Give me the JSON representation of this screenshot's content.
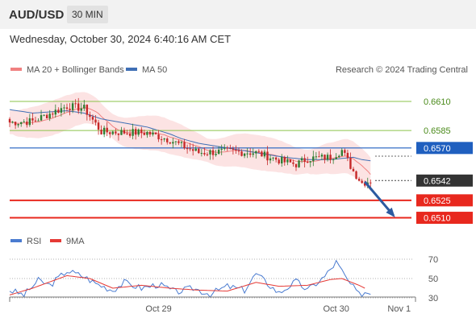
{
  "header": {
    "symbol": "AUD/USD",
    "interval": "30 MIN",
    "datetime": "Wednesday, October 30, 2024 6:40:16 AM CET"
  },
  "legend": {
    "ma20": "MA 20 + Bollinger Bands",
    "ma50": "MA 50",
    "copyright": "Research © 2024 Trading Central",
    "rsi": "RSI",
    "rsi_ma": "9MA"
  },
  "colors": {
    "candle_up": "#2e7d32",
    "candle_down": "#c62828",
    "ma20": "#f08080",
    "band_fill": "#fbd9d9",
    "ma50": "#3f6fb5",
    "resistance_green": "#8bc34a",
    "pivot_blue": "#1f5fbf",
    "support_red": "#e8281e",
    "current_box": "#333333",
    "rsi": "#4a7bd0",
    "rsi_ma": "#e53935",
    "arrow": "#2c5aa0"
  },
  "chart_data": [
    {
      "type": "candlestick",
      "title": "AUD/USD 30 MIN",
      "price_range": [
        0.65,
        0.6628
      ],
      "x_labels": [
        {
          "label": "Oct 29",
          "bar": 52
        },
        {
          "label": "Oct 30",
          "bar": 114
        },
        {
          "label": "Nov 1",
          "bar": 136
        }
      ],
      "levels": [
        {
          "value": 0.661,
          "label": "0.6610",
          "kind": "resistance"
        },
        {
          "value": 0.6585,
          "label": "0.6585",
          "kind": "resistance"
        },
        {
          "value": 0.657,
          "label": "0.6570",
          "kind": "pivot"
        },
        {
          "value": 0.6542,
          "label": "0.6542",
          "kind": "current"
        },
        {
          "value": 0.6525,
          "label": "0.6525",
          "kind": "support"
        },
        {
          "value": 0.651,
          "label": "0.6510",
          "kind": "support"
        }
      ],
      "forecast_arrow": {
        "from_bar": 124,
        "from_value": 0.6541,
        "to_bar": 134,
        "to_value": 0.6512
      },
      "anchors": [
        [
          0,
          0.6592,
          0.6603
        ],
        [
          8,
          0.6593,
          0.66
        ],
        [
          20,
          0.6606,
          0.6602
        ],
        [
          26,
          0.6604,
          0.66
        ],
        [
          32,
          0.6584,
          0.6595
        ],
        [
          48,
          0.6583,
          0.6588
        ],
        [
          56,
          0.6577,
          0.6582
        ],
        [
          60,
          0.6572,
          0.6578
        ],
        [
          66,
          0.6566,
          0.6574
        ],
        [
          76,
          0.6567,
          0.657
        ],
        [
          86,
          0.6566,
          0.6566
        ],
        [
          96,
          0.6558,
          0.6562
        ],
        [
          100,
          0.6556,
          0.6561
        ],
        [
          104,
          0.6561,
          0.656
        ],
        [
          112,
          0.6562,
          0.656
        ],
        [
          116,
          0.6568,
          0.6561
        ],
        [
          120,
          0.655,
          0.6562
        ],
        [
          123,
          0.654,
          0.656
        ],
        [
          126,
          0.6542,
          0.6559
        ]
      ]
    },
    {
      "type": "line",
      "title": "RSI",
      "y_range": [
        20,
        80
      ],
      "y_ticks": [
        30,
        50,
        70
      ],
      "rsi_anchors": [
        [
          0,
          38
        ],
        [
          5,
          33
        ],
        [
          10,
          48
        ],
        [
          14,
          43
        ],
        [
          20,
          58
        ],
        [
          26,
          52
        ],
        [
          30,
          45
        ],
        [
          36,
          38
        ],
        [
          40,
          46
        ],
        [
          46,
          40
        ],
        [
          52,
          44
        ],
        [
          58,
          36
        ],
        [
          64,
          40
        ],
        [
          70,
          34
        ],
        [
          76,
          42
        ],
        [
          82,
          38
        ],
        [
          86,
          55
        ],
        [
          90,
          45
        ],
        [
          94,
          35
        ],
        [
          100,
          47
        ],
        [
          104,
          38
        ],
        [
          110,
          52
        ],
        [
          114,
          67
        ],
        [
          118,
          48
        ],
        [
          122,
          33
        ],
        [
          124,
          36
        ],
        [
          126,
          35
        ]
      ],
      "ma_anchors": [
        [
          0,
          33
        ],
        [
          8,
          40
        ],
        [
          20,
          53
        ],
        [
          28,
          50
        ],
        [
          36,
          40
        ],
        [
          46,
          43
        ],
        [
          56,
          40
        ],
        [
          66,
          38
        ],
        [
          76,
          37
        ],
        [
          86,
          46
        ],
        [
          94,
          42
        ],
        [
          104,
          43
        ],
        [
          112,
          49
        ],
        [
          116,
          50
        ],
        [
          122,
          43
        ],
        [
          124,
          40
        ]
      ]
    }
  ]
}
